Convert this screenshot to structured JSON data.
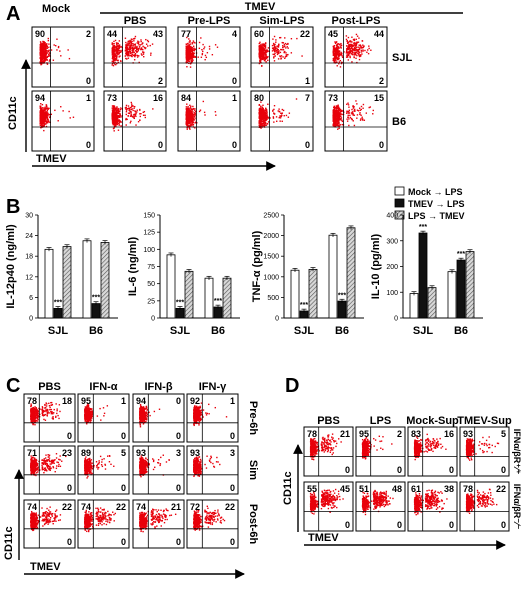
{
  "panelA": {
    "letter": "A",
    "mock_label": "Mock",
    "tmev_label": "TMEV",
    "columns": [
      "PBS",
      "Pre-LPS",
      "Sim-LPS",
      "Post-LPS"
    ],
    "rows": [
      "SJL",
      "B6"
    ],
    "y_axis": "CD11c",
    "x_axis": "TMEV",
    "plots": [
      [
        [
          90,
          2,
          0
        ],
        [
          44,
          43,
          2
        ],
        [
          77,
          4,
          0
        ],
        [
          60,
          22,
          1
        ],
        [
          45,
          44,
          2
        ]
      ],
      [
        [
          94,
          1,
          0
        ],
        [
          73,
          16,
          0
        ],
        [
          84,
          1,
          0
        ],
        [
          80,
          7,
          0
        ],
        [
          73,
          15,
          0
        ]
      ]
    ]
  },
  "panelB": {
    "letter": "B",
    "legend": [
      "Mock → LPS",
      "TMEV → LPS",
      "LPS → TMEV"
    ],
    "significance": "***"
  },
  "chart_data": [
    {
      "type": "bar",
      "ylabel": "IL-12p40 (ng/ml)",
      "categories": [
        "SJL",
        "B6"
      ],
      "ylim": [
        0,
        30
      ],
      "yticks": [
        "0",
        "6",
        "12",
        "18",
        "24",
        "30"
      ],
      "series": [
        {
          "name": "Mock → LPS",
          "values": [
            20,
            22.5
          ]
        },
        {
          "name": "TMEV → LPS",
          "values": [
            2.8,
            4.2
          ]
        },
        {
          "name": "LPS → TMEV",
          "values": [
            20.8,
            22
          ]
        }
      ]
    },
    {
      "type": "bar",
      "ylabel": "IL-6 (ng/ml)",
      "categories": [
        "SJL",
        "B6"
      ],
      "ylim": [
        0,
        150
      ],
      "yticks": [
        "0",
        "25",
        "50",
        "75",
        "100",
        "125",
        "150"
      ],
      "series": [
        {
          "name": "Mock → LPS",
          "values": [
            92,
            58
          ]
        },
        {
          "name": "TMEV → LPS",
          "values": [
            14,
            16
          ]
        },
        {
          "name": "LPS → TMEV",
          "values": [
            68,
            58
          ]
        }
      ]
    },
    {
      "type": "bar",
      "ylabel": "TNF-α (pg/ml)",
      "categories": [
        "SJL",
        "B6"
      ],
      "ylim": [
        0,
        2500
      ],
      "yticks": [
        "0",
        "500",
        "1000",
        "1500",
        "2000",
        "2500"
      ],
      "series": [
        {
          "name": "Mock → LPS",
          "values": [
            1160,
            2010
          ]
        },
        {
          "name": "TMEV → LPS",
          "values": [
            170,
            410
          ]
        },
        {
          "name": "LPS → TMEV",
          "values": [
            1180,
            2190
          ]
        }
      ]
    },
    {
      "type": "bar",
      "ylabel": "IL-10 (pg/ml)",
      "categories": [
        "SJL",
        "B6"
      ],
      "ylim": [
        0,
        400
      ],
      "yticks": [
        "0",
        "100",
        "200",
        "300",
        "400"
      ],
      "series": [
        {
          "name": "Mock → LPS",
          "values": [
            95,
            180
          ]
        },
        {
          "name": "TMEV → LPS",
          "values": [
            330,
            225
          ]
        },
        {
          "name": "LPS → TMEV",
          "values": [
            118,
            258
          ]
        }
      ]
    }
  ],
  "panelC": {
    "letter": "C",
    "columns": [
      "PBS",
      "IFN-α",
      "IFN-β",
      "IFN-γ"
    ],
    "rows": [
      "Pre-6h",
      "Sim",
      "Post-6h"
    ],
    "y_axis": "CD11c",
    "x_axis": "TMEV",
    "plots": [
      [
        [
          78,
          18,
          0
        ],
        [
          95,
          1,
          0
        ],
        [
          94,
          0,
          0
        ],
        [
          92,
          1,
          0
        ]
      ],
      [
        [
          71,
          23,
          0
        ],
        [
          89,
          5,
          0
        ],
        [
          93,
          3,
          0
        ],
        [
          93,
          3,
          0
        ]
      ],
      [
        [
          74,
          22,
          0
        ],
        [
          74,
          22,
          0
        ],
        [
          74,
          21,
          0
        ],
        [
          72,
          22,
          0
        ]
      ]
    ]
  },
  "panelD": {
    "letter": "D",
    "columns": [
      "PBS",
      "LPS",
      "Mock-Sup",
      "TMEV-Sup"
    ],
    "rows": [
      "IFNα/βR⁺⁄⁺",
      "IFNα/βR⁻⁄⁻"
    ],
    "y_axis": "CD11c",
    "x_axis": "TMEV",
    "plots": [
      [
        [
          78,
          21,
          0
        ],
        [
          95,
          2,
          0
        ],
        [
          83,
          16,
          0
        ],
        [
          93,
          5,
          0
        ]
      ],
      [
        [
          55,
          45,
          0
        ],
        [
          51,
          48,
          0
        ],
        [
          61,
          38,
          0
        ],
        [
          78,
          22,
          0
        ]
      ]
    ]
  },
  "colors": {
    "dots": "#e8000b",
    "bar_white": "#ffffff",
    "bar_black": "#111111",
    "bar_hatch": "#9a9a9a"
  }
}
